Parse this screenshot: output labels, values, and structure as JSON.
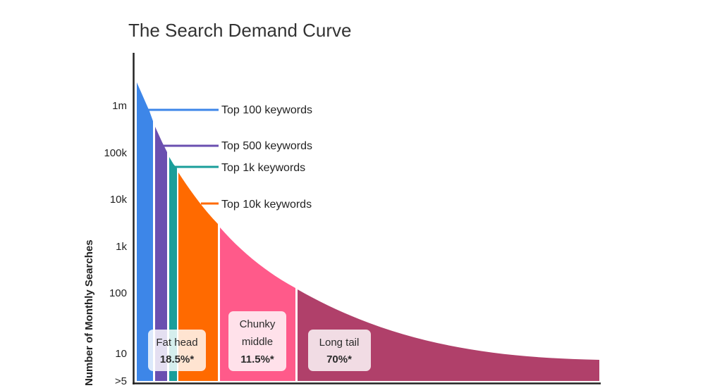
{
  "chart_data": {
    "type": "area",
    "title": "The Search Demand Curve",
    "ylabel": "Number of Monthly Searches",
    "y_scale": "log",
    "y_ticks": [
      "1m",
      "100k",
      "10k",
      "1k",
      "100",
      "10",
      ">5"
    ],
    "series": [
      {
        "name": "Top 100 keywords",
        "color": "#3d86e8"
      },
      {
        "name": "Top 500 keywords",
        "color": "#6a4fb0"
      },
      {
        "name": "Top 1k keywords",
        "color": "#1a9e9a"
      },
      {
        "name": "Top 10k keywords",
        "color": "#ff6a00"
      },
      {
        "name": "Chunky middle",
        "color": "#ff5a8a"
      },
      {
        "name": "Long tail",
        "color": "#b0406a"
      }
    ],
    "annotations": [
      {
        "label": "Top 100 keywords",
        "color": "#3d86e8"
      },
      {
        "label": "Top 500 keywords",
        "color": "#6a4fb0"
      },
      {
        "label": "Top 1k keywords",
        "color": "#1a9e9a"
      },
      {
        "label": "Top 10k keywords",
        "color": "#ff6a00"
      }
    ],
    "segments": [
      {
        "name": "Fat head",
        "share": "18.5%*",
        "share_value": 18.5
      },
      {
        "name": "Chunky middle",
        "share": "11.5%*",
        "share_value": 11.5
      },
      {
        "name": "Long tail",
        "share": "70%*",
        "share_value": 70
      }
    ],
    "grid": false,
    "legend": "none"
  },
  "labels": {
    "fat_head_line1": "Fat head",
    "fat_head_line2": "18.5%*",
    "chunky_line1": "Chunky",
    "chunky_line2": "middle",
    "chunky_line3": "11.5%*",
    "long_tail_line1": "Long tail",
    "long_tail_line2": "70%*"
  }
}
